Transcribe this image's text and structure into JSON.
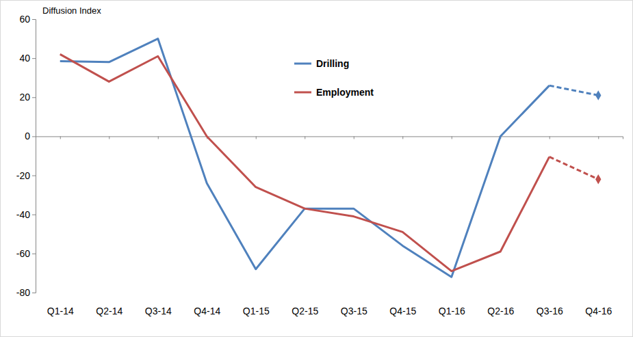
{
  "chart_data": {
    "type": "line",
    "y_label": "Diffusion Index",
    "categories": [
      "Q1-14",
      "Q2-14",
      "Q3-14",
      "Q4-14",
      "Q1-15",
      "Q2-15",
      "Q3-15",
      "Q4-15",
      "Q1-16",
      "Q2-16",
      "Q3-16",
      "Q4-16"
    ],
    "series": [
      {
        "name": "Drilling",
        "color": "#4f81bd",
        "values": [
          38.5,
          38,
          50,
          -24,
          -68,
          -37,
          -37,
          -56,
          -72,
          0,
          26,
          21
        ]
      },
      {
        "name": "Employment",
        "color": "#c0504d",
        "values": [
          42,
          28,
          41,
          0,
          -26,
          -37,
          -41,
          -49,
          -69,
          -59,
          -10.5,
          -22
        ]
      }
    ],
    "ylim": [
      -80,
      60
    ],
    "yticks": [
      -80,
      -60,
      -40,
      -20,
      0,
      20,
      40,
      60
    ],
    "grid": false,
    "legend": "top"
  }
}
